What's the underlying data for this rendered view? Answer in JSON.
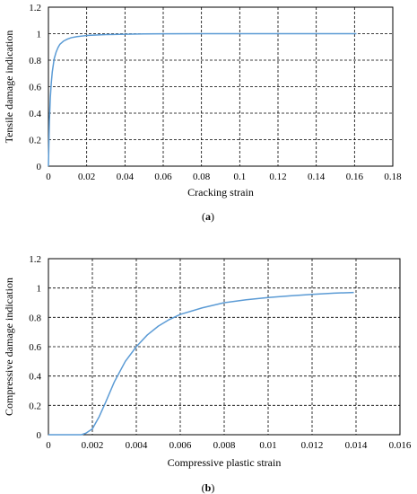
{
  "chart_data": [
    {
      "type": "line",
      "caption_open": "(",
      "caption_letter": "a",
      "caption_close": ")",
      "xlabel": "Cracking strain",
      "ylabel": "Tensile  damage indication",
      "xlim": [
        0,
        0.18
      ],
      "ylim": [
        0,
        1.2
      ],
      "xticks": [
        0,
        0.02,
        0.04,
        0.06,
        0.08,
        0.1,
        0.12,
        0.14,
        0.16,
        0.18
      ],
      "yticks": [
        0,
        0.2,
        0.4,
        0.6,
        0.8,
        1,
        1.2
      ],
      "grid": true,
      "line_color": "#5b9bd5",
      "series": [
        {
          "x": [
            0,
            0.0005,
            0.001,
            0.0015,
            0.002,
            0.003,
            0.004,
            0.005,
            0.006,
            0.008,
            0.01,
            0.012,
            0.015,
            0.02,
            0.025,
            0.03,
            0.04,
            0.05,
            0.06,
            0.08,
            0.1,
            0.12,
            0.14,
            0.161
          ],
          "values": [
            0,
            0.34,
            0.52,
            0.63,
            0.71,
            0.81,
            0.86,
            0.895,
            0.92,
            0.945,
            0.96,
            0.97,
            0.978,
            0.986,
            0.99,
            0.993,
            0.996,
            0.998,
            0.999,
            1,
            1,
            1,
            1,
            1
          ]
        }
      ]
    },
    {
      "type": "line",
      "caption_open": "(",
      "caption_letter": "b",
      "caption_close": ")",
      "xlabel": "Compressive plastic strain",
      "ylabel": "Compressive damage indication",
      "xlim": [
        0,
        0.016
      ],
      "ylim": [
        0,
        1.2
      ],
      "xticks": [
        0,
        0.002,
        0.004,
        0.006,
        0.008,
        0.01,
        0.012,
        0.014,
        0.016
      ],
      "yticks": [
        0,
        0.2,
        0.4,
        0.6,
        0.8,
        1,
        1.2
      ],
      "grid": true,
      "line_color": "#5b9bd5",
      "series": [
        {
          "x": [
            0,
            0.0015,
            0.0017,
            0.002,
            0.0023,
            0.0026,
            0.003,
            0.0035,
            0.004,
            0.0045,
            0.005,
            0.0055,
            0.006,
            0.007,
            0.008,
            0.009,
            0.01,
            0.011,
            0.012,
            0.013,
            0.0139
          ],
          "values": [
            0,
            0,
            0.01,
            0.04,
            0.12,
            0.22,
            0.36,
            0.5,
            0.6,
            0.68,
            0.74,
            0.785,
            0.82,
            0.865,
            0.9,
            0.92,
            0.935,
            0.947,
            0.957,
            0.965,
            0.97
          ]
        }
      ]
    }
  ]
}
